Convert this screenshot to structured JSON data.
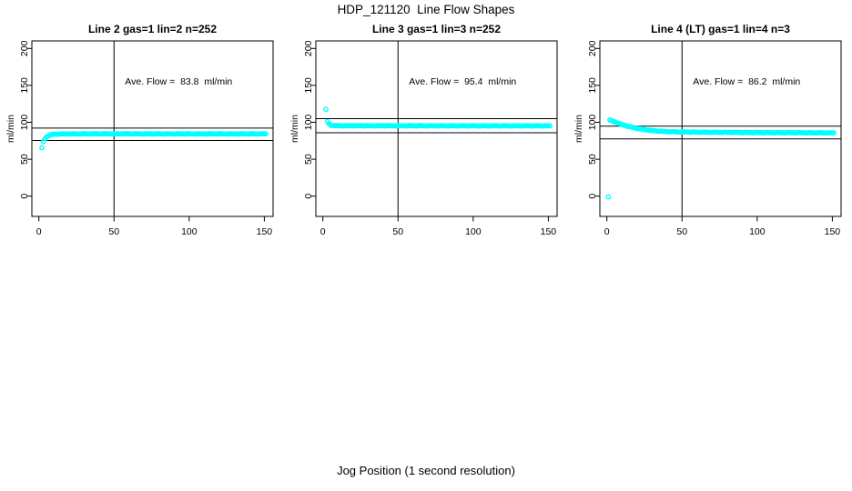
{
  "main_title": "HDP_121120  Line Flow Shapes",
  "xlabel": "Jog Position (1 second resolution)",
  "point_color": "#00ffff",
  "chart_data": [
    {
      "type": "scatter",
      "title": "Line 2 gas=1 lin=2 n=252",
      "annotation": "Ave. Flow =  83.8  ml/min",
      "ave_flow_ml_min": 83.8,
      "ylabel": "ml/min",
      "xticks": [
        0,
        50,
        100,
        150
      ],
      "yticks": [
        0,
        50,
        100,
        150,
        200
      ],
      "xlim": [
        -4.7,
        155.8
      ],
      "ylim": [
        -27.5,
        210.5
      ],
      "grid": false,
      "vline_x": 50,
      "hlines": [
        75.4,
        92.2
      ],
      "outlier_points": [
        [
          2,
          65.5
        ]
      ],
      "curve_anchors": [
        [
          3,
          74
        ],
        [
          4,
          77.5
        ],
        [
          5,
          80
        ],
        [
          6,
          81.5
        ],
        [
          7,
          82.5
        ],
        [
          9,
          83.5
        ],
        [
          12,
          84
        ],
        [
          20,
          84.3
        ],
        [
          50,
          84.4
        ],
        [
          80,
          84.3
        ],
        [
          120,
          84.3
        ],
        [
          151,
          84.3
        ]
      ],
      "curve_x_step": 1
    },
    {
      "type": "scatter",
      "title": "Line 3 gas=1 lin=3 n=252",
      "annotation": "Ave. Flow =  95.4  ml/min",
      "ave_flow_ml_min": 95.4,
      "ylabel": "ml/min",
      "xticks": [
        0,
        50,
        100,
        150
      ],
      "yticks": [
        0,
        50,
        100,
        150,
        200
      ],
      "xlim": [
        -4.7,
        155.8
      ],
      "ylim": [
        -27.5,
        210.5
      ],
      "grid": false,
      "vline_x": 50,
      "hlines": [
        85.9,
        104.9
      ],
      "outlier_points": [
        [
          2,
          117.5
        ]
      ],
      "curve_anchors": [
        [
          3,
          101
        ],
        [
          4,
          98
        ],
        [
          5,
          96.3
        ],
        [
          6,
          95.7
        ],
        [
          8,
          95.4
        ],
        [
          15,
          95.3
        ],
        [
          50,
          95.3
        ],
        [
          100,
          95.2
        ],
        [
          151,
          95.2
        ]
      ],
      "curve_x_step": 1
    },
    {
      "type": "scatter",
      "title": "Line 4 (LT) gas=1 lin=4 n=3",
      "annotation": "Ave. Flow =  86.2  ml/min",
      "ave_flow_ml_min": 86.2,
      "ylabel": "ml/min",
      "xticks": [
        0,
        50,
        100,
        150
      ],
      "yticks": [
        0,
        50,
        100,
        150,
        200
      ],
      "xlim": [
        -4.7,
        155.8
      ],
      "ylim": [
        -27.5,
        210.5
      ],
      "grid": false,
      "vline_x": 50,
      "hlines": [
        77.6,
        94.8
      ],
      "outlier_points": [
        [
          1,
          -1
        ]
      ],
      "curve_anchors": [
        [
          2,
          103
        ],
        [
          3,
          102.3
        ],
        [
          4,
          101.5
        ],
        [
          5,
          100.8
        ],
        [
          6,
          100
        ],
        [
          7,
          99.2
        ],
        [
          8,
          98.4
        ],
        [
          9,
          97.7
        ],
        [
          10,
          97
        ],
        [
          12,
          95.8
        ],
        [
          14,
          94.6
        ],
        [
          16,
          93.6
        ],
        [
          18,
          92.6
        ],
        [
          20,
          91.8
        ],
        [
          23,
          90.7
        ],
        [
          26,
          89.8
        ],
        [
          30,
          88.8
        ],
        [
          34,
          88.1
        ],
        [
          38,
          87.6
        ],
        [
          42,
          87.2
        ],
        [
          46,
          87
        ],
        [
          50,
          86.9
        ],
        [
          60,
          86.6
        ],
        [
          70,
          86.4
        ],
        [
          85,
          86.2
        ],
        [
          100,
          86
        ],
        [
          120,
          85.9
        ],
        [
          151,
          85.7
        ]
      ],
      "curve_x_step": 1
    }
  ]
}
